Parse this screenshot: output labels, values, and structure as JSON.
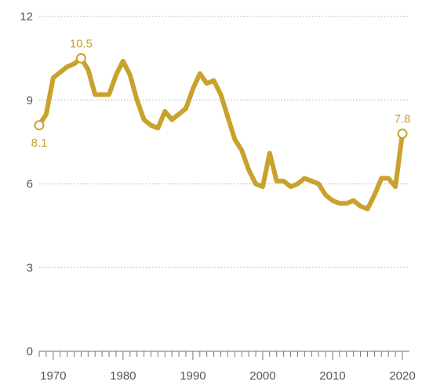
{
  "chart_data": {
    "type": "line",
    "title": "",
    "xlabel": "",
    "ylabel": "",
    "xlim": [
      1968,
      2020
    ],
    "ylim": [
      0,
      12
    ],
    "x_ticks": [
      1970,
      1980,
      1990,
      2000,
      2010,
      2020
    ],
    "x_tick_labels": [
      "1970",
      "1980",
      "1990",
      "2000",
      "2010",
      "2020"
    ],
    "y_ticks": [
      0,
      3,
      6,
      9,
      12
    ],
    "y_tick_labels": [
      "0",
      "3",
      "6",
      "9",
      "12"
    ],
    "grid": "horizontal dotted",
    "legend": "none",
    "line_color": "#c9a22c",
    "series": [
      {
        "x": [
          1968,
          1969,
          1970,
          1971,
          1972,
          1973,
          1974,
          1975,
          1976,
          1977,
          1978,
          1979,
          1980,
          1981,
          1982,
          1983,
          1984,
          1985,
          1986,
          1987,
          1988,
          1989,
          1990,
          1991,
          1992,
          1993,
          1994,
          1995,
          1996,
          1997,
          1998,
          1999,
          2000,
          2001,
          2002,
          2003,
          2004,
          2005,
          2006,
          2007,
          2008,
          2009,
          2010,
          2011,
          2012,
          2013,
          2014,
          2015,
          2016,
          2017,
          2018,
          2019,
          2020
        ],
        "values": [
          8.1,
          8.5,
          9.8,
          10.0,
          10.2,
          10.3,
          10.5,
          10.1,
          9.2,
          9.2,
          9.2,
          9.9,
          10.4,
          9.9,
          9.0,
          8.3,
          8.1,
          8.0,
          8.6,
          8.3,
          8.5,
          8.7,
          9.4,
          9.95,
          9.6,
          9.7,
          9.2,
          8.4,
          7.6,
          7.2,
          6.5,
          6.0,
          5.9,
          7.1,
          6.1,
          6.1,
          5.9,
          6.0,
          6.2,
          6.1,
          6.0,
          5.6,
          5.4,
          5.3,
          5.3,
          5.4,
          5.2,
          5.1,
          5.6,
          6.2,
          6.2,
          5.9,
          7.8
        ]
      }
    ],
    "annotations": [
      {
        "x": 1968,
        "y": 8.1,
        "label": "8.1",
        "position": "below"
      },
      {
        "x": 1974,
        "y": 10.5,
        "label": "10.5",
        "position": "above"
      },
      {
        "x": 2020,
        "y": 7.8,
        "label": "7.8",
        "position": "above"
      }
    ]
  }
}
